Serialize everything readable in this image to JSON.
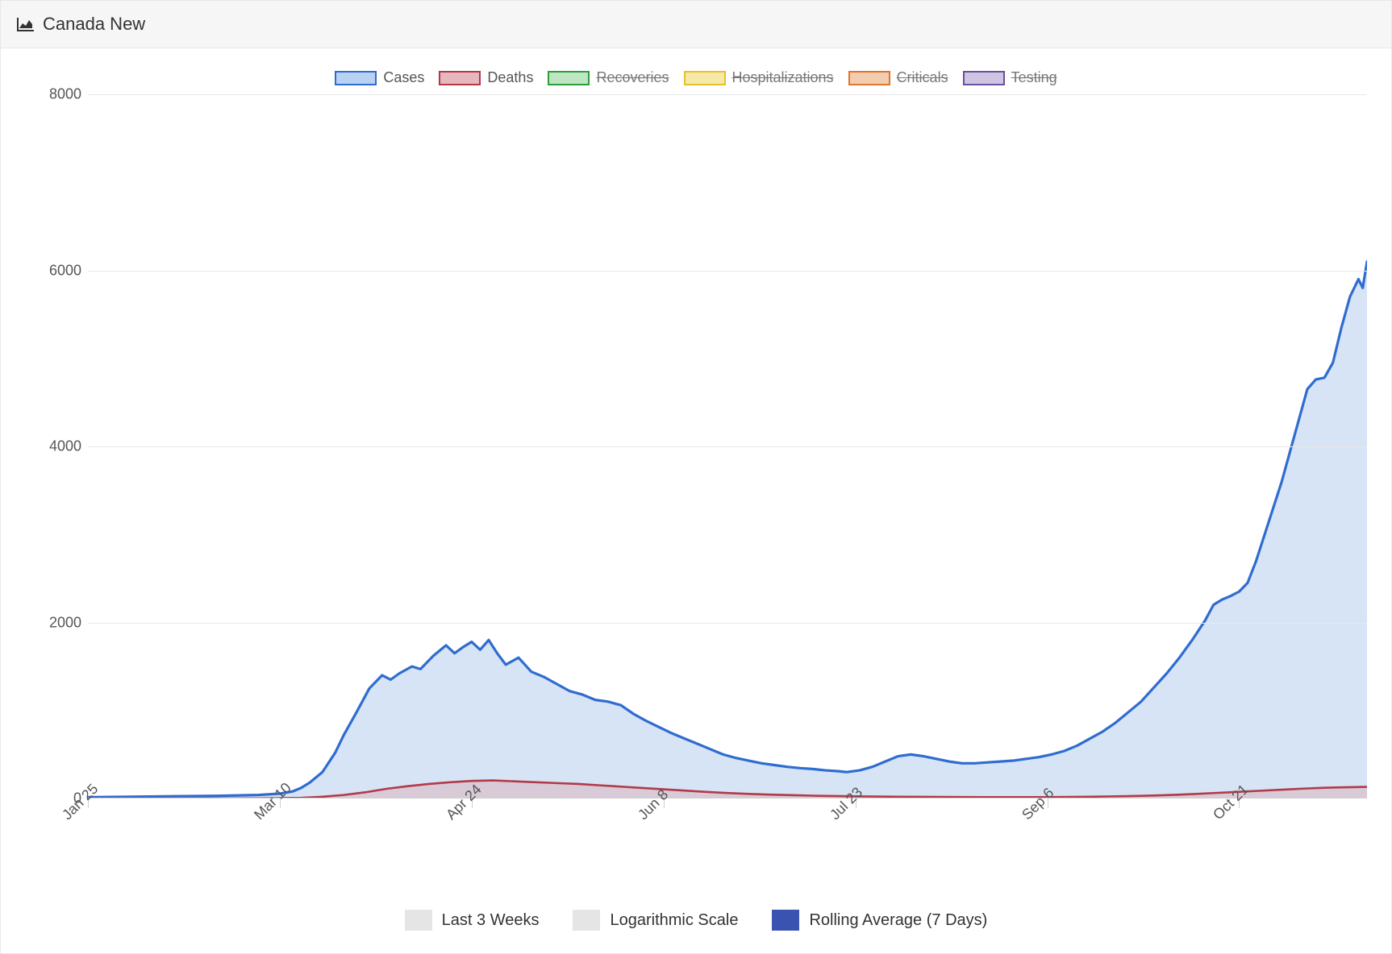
{
  "header": {
    "title": "Canada New"
  },
  "legend_top": [
    {
      "label": "Cases",
      "border": "#2f6cd0",
      "fill": "#b9d1f3",
      "disabled": false
    },
    {
      "label": "Deaths",
      "border": "#b23a48",
      "fill": "#e6b7bd",
      "disabled": false
    },
    {
      "label": "Recoveries",
      "border": "#2e9e3a",
      "fill": "#bfe6c3",
      "disabled": true
    },
    {
      "label": "Hospitalizations",
      "border": "#e6c02e",
      "fill": "#f6e9a8",
      "disabled": true
    },
    {
      "label": "Criticals",
      "border": "#e0762c",
      "fill": "#f3cdb0",
      "disabled": true
    },
    {
      "label": "Testing",
      "border": "#6b4fa0",
      "fill": "#cfc5e3",
      "disabled": true
    }
  ],
  "legend_bottom": [
    {
      "label": "Last 3 Weeks",
      "color": "#e5e5e5",
      "active": false
    },
    {
      "label": "Logarithmic Scale",
      "color": "#e5e5e5",
      "active": false
    },
    {
      "label": "Rolling Average (7 Days)",
      "color": "#3b53b0",
      "active": true
    }
  ],
  "chart": {
    "type": "area",
    "background_color": "#ffffff",
    "grid_color": "#e9e9e9",
    "x_range": [
      0,
      300
    ],
    "y_range": [
      0,
      8000
    ],
    "y_ticks": [
      0,
      2000,
      4000,
      6000,
      8000
    ],
    "x_ticks": [
      {
        "pos": 0,
        "label": "Jan 25"
      },
      {
        "pos": 45,
        "label": "Mar 10"
      },
      {
        "pos": 90,
        "label": "Apr 24"
      },
      {
        "pos": 135,
        "label": "Jun 8"
      },
      {
        "pos": 180,
        "label": "Jul 23"
      },
      {
        "pos": 225,
        "label": "Sep 6"
      },
      {
        "pos": 270,
        "label": "Oct 21"
      }
    ],
    "series": [
      {
        "name": "Cases",
        "stroke": "#2f6cd0",
        "fill": "#c9dbf3",
        "fill_opacity": 0.75,
        "stroke_width": 3.2,
        "data": [
          [
            0,
            15
          ],
          [
            10,
            20
          ],
          [
            20,
            25
          ],
          [
            30,
            30
          ],
          [
            40,
            40
          ],
          [
            45,
            55
          ],
          [
            48,
            80
          ],
          [
            50,
            120
          ],
          [
            52,
            180
          ],
          [
            55,
            300
          ],
          [
            58,
            520
          ],
          [
            60,
            720
          ],
          [
            63,
            980
          ],
          [
            66,
            1250
          ],
          [
            69,
            1400
          ],
          [
            71,
            1350
          ],
          [
            73,
            1420
          ],
          [
            76,
            1500
          ],
          [
            78,
            1470
          ],
          [
            81,
            1620
          ],
          [
            84,
            1740
          ],
          [
            86,
            1650
          ],
          [
            88,
            1720
          ],
          [
            90,
            1780
          ],
          [
            92,
            1690
          ],
          [
            94,
            1800
          ],
          [
            96,
            1650
          ],
          [
            98,
            1520
          ],
          [
            101,
            1600
          ],
          [
            104,
            1440
          ],
          [
            107,
            1380
          ],
          [
            110,
            1300
          ],
          [
            113,
            1220
          ],
          [
            116,
            1180
          ],
          [
            119,
            1120
          ],
          [
            122,
            1100
          ],
          [
            125,
            1060
          ],
          [
            128,
            960
          ],
          [
            131,
            880
          ],
          [
            134,
            810
          ],
          [
            137,
            740
          ],
          [
            140,
            680
          ],
          [
            143,
            620
          ],
          [
            146,
            560
          ],
          [
            149,
            500
          ],
          [
            152,
            460
          ],
          [
            155,
            430
          ],
          [
            158,
            400
          ],
          [
            161,
            380
          ],
          [
            164,
            360
          ],
          [
            167,
            345
          ],
          [
            170,
            335
          ],
          [
            173,
            320
          ],
          [
            176,
            310
          ],
          [
            178,
            300
          ],
          [
            181,
            320
          ],
          [
            184,
            360
          ],
          [
            187,
            420
          ],
          [
            190,
            480
          ],
          [
            193,
            500
          ],
          [
            196,
            480
          ],
          [
            199,
            450
          ],
          [
            202,
            420
          ],
          [
            205,
            400
          ],
          [
            208,
            400
          ],
          [
            211,
            410
          ],
          [
            214,
            420
          ],
          [
            217,
            430
          ],
          [
            220,
            450
          ],
          [
            223,
            470
          ],
          [
            226,
            500
          ],
          [
            229,
            540
          ],
          [
            232,
            600
          ],
          [
            235,
            680
          ],
          [
            238,
            760
          ],
          [
            241,
            860
          ],
          [
            244,
            980
          ],
          [
            247,
            1100
          ],
          [
            250,
            1260
          ],
          [
            253,
            1420
          ],
          [
            256,
            1600
          ],
          [
            259,
            1800
          ],
          [
            262,
            2020
          ],
          [
            264,
            2200
          ],
          [
            266,
            2260
          ],
          [
            268,
            2300
          ],
          [
            270,
            2350
          ],
          [
            272,
            2450
          ],
          [
            274,
            2700
          ],
          [
            276,
            3000
          ],
          [
            278,
            3300
          ],
          [
            280,
            3600
          ],
          [
            282,
            3950
          ],
          [
            284,
            4300
          ],
          [
            286,
            4650
          ],
          [
            288,
            4760
          ],
          [
            290,
            4780
          ],
          [
            292,
            4950
          ],
          [
            294,
            5350
          ],
          [
            296,
            5700
          ],
          [
            298,
            5900
          ],
          [
            299,
            5800
          ],
          [
            300,
            6100
          ]
        ]
      },
      {
        "name": "Deaths",
        "stroke": "#b23a48",
        "fill": "#d9b5bb",
        "fill_opacity": 0.55,
        "stroke_width": 2.6,
        "data": [
          [
            0,
            0
          ],
          [
            20,
            0
          ],
          [
            40,
            2
          ],
          [
            50,
            8
          ],
          [
            55,
            20
          ],
          [
            60,
            40
          ],
          [
            65,
            70
          ],
          [
            70,
            110
          ],
          [
            75,
            140
          ],
          [
            80,
            165
          ],
          [
            85,
            185
          ],
          [
            90,
            200
          ],
          [
            95,
            205
          ],
          [
            100,
            195
          ],
          [
            105,
            185
          ],
          [
            110,
            175
          ],
          [
            115,
            165
          ],
          [
            120,
            150
          ],
          [
            125,
            135
          ],
          [
            130,
            120
          ],
          [
            135,
            105
          ],
          [
            140,
            90
          ],
          [
            145,
            75
          ],
          [
            150,
            62
          ],
          [
            155,
            52
          ],
          [
            160,
            44
          ],
          [
            165,
            38
          ],
          [
            170,
            32
          ],
          [
            175,
            28
          ],
          [
            180,
            25
          ],
          [
            185,
            22
          ],
          [
            190,
            20
          ],
          [
            195,
            19
          ],
          [
            200,
            18
          ],
          [
            205,
            17
          ],
          [
            210,
            16
          ],
          [
            215,
            15
          ],
          [
            220,
            15
          ],
          [
            225,
            16
          ],
          [
            230,
            18
          ],
          [
            235,
            20
          ],
          [
            240,
            24
          ],
          [
            245,
            28
          ],
          [
            250,
            34
          ],
          [
            255,
            42
          ],
          [
            260,
            52
          ],
          [
            265,
            64
          ],
          [
            270,
            76
          ],
          [
            275,
            88
          ],
          [
            280,
            100
          ],
          [
            285,
            112
          ],
          [
            290,
            122
          ],
          [
            295,
            128
          ],
          [
            300,
            132
          ]
        ]
      }
    ]
  }
}
